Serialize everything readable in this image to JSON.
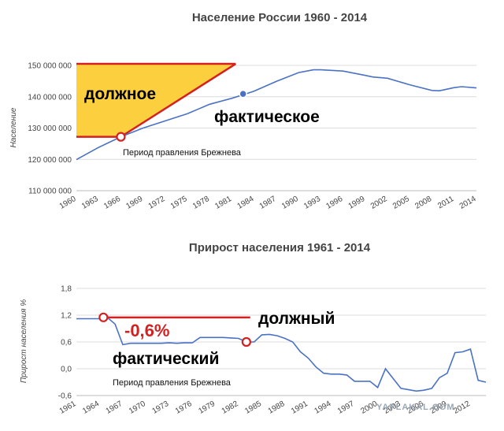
{
  "chart_data": [
    {
      "type": "line",
      "title": "Население России 1960 - 2014",
      "ylabel": "Население",
      "xlim": [
        1960,
        2014
      ],
      "ylim": [
        110000000,
        150000000
      ],
      "yticks": [
        "110 000 000",
        "120 000 000",
        "130 000 000",
        "140 000 000",
        "150 000 000"
      ],
      "yticks_values": [
        110000000,
        120000000,
        130000000,
        140000000,
        150000000
      ],
      "xticks": [
        "1960",
        "1963",
        "1966",
        "1969",
        "1972",
        "1975",
        "1978",
        "1981",
        "1984",
        "1987",
        "1990",
        "1993",
        "1996",
        "1999",
        "2002",
        "2005",
        "2008",
        "2011",
        "2014"
      ],
      "grid": true,
      "series": [
        {
          "name": "",
          "color": "#4a72c4",
          "x": [
            1960,
            1963,
            1966,
            1969,
            1972,
            1975,
            1978,
            1981,
            1983,
            1984,
            1987,
            1990,
            1992,
            1993,
            1996,
            1999,
            2000,
            2002,
            2005,
            2008,
            2009,
            2011,
            2012,
            2014
          ],
          "y": [
            119900000,
            123800000,
            127200000,
            130000000,
            132300000,
            134600000,
            137600000,
            139500000,
            141000000,
            141800000,
            144900000,
            147700000,
            148600000,
            148600000,
            148200000,
            146800000,
            146300000,
            145900000,
            143800000,
            142000000,
            141900000,
            142900000,
            143200000,
            142800000
          ]
        }
      ],
      "markers": [
        {
          "x": 1966,
          "y": 127200000,
          "style": "red-ring"
        },
        {
          "x": 1982.5,
          "y": 140900000,
          "style": "blue-dot"
        }
      ],
      "annotations": {
        "should_label": "должное",
        "actual_label": "фактическое",
        "period_label": "Период правления Брежнева",
        "shaded_region": {
          "x": [
            1960,
            1981.5
          ],
          "y_low": 127200000,
          "y_high": 150500000,
          "color": "#fccf3e",
          "border": "#d42020"
        }
      }
    },
    {
      "type": "line",
      "title": "Прирост населения 1961 - 2014",
      "ylabel": "Прирост населения %",
      "xlim": [
        1961,
        2014
      ],
      "ylim": [
        -0.6,
        1.8
      ],
      "yticks": [
        "-0,6",
        "0,0",
        "0,6",
        "1,2",
        "1,8"
      ],
      "yticks_values": [
        -0.6,
        0.0,
        0.6,
        1.2,
        1.8
      ],
      "xticks": [
        "1961",
        "1964",
        "1967",
        "1970",
        "1973",
        "1976",
        "1979",
        "1982",
        "1985",
        "1988",
        "1991",
        "1994",
        "1997",
        "2000",
        "2003",
        "2006",
        "2009",
        "2012"
      ],
      "grid": true,
      "series": [
        {
          "name": "",
          "color": "#4a72c4",
          "x": [
            1961,
            1962,
            1963,
            1964,
            1965,
            1966,
            1967,
            1968,
            1969,
            1970,
            1971,
            1972,
            1973,
            1974,
            1975,
            1976,
            1977,
            1978,
            1979,
            1980,
            1981,
            1982,
            1983,
            1984,
            1985,
            1986,
            1987,
            1988,
            1989,
            1990,
            1991,
            1992,
            1993,
            1994,
            1995,
            1996,
            1997,
            1998,
            1999,
            2000,
            2001,
            2002,
            2003,
            2004,
            2005,
            2006,
            2007,
            2008,
            2009,
            2010,
            2011,
            2012,
            2013,
            2014
          ],
          "y": [
            1.12,
            1.12,
            1.12,
            1.12,
            1.15,
            1.0,
            0.54,
            0.57,
            0.57,
            0.57,
            0.57,
            0.57,
            0.58,
            0.57,
            0.58,
            0.58,
            0.7,
            0.7,
            0.7,
            0.7,
            0.69,
            0.68,
            0.6,
            0.6,
            0.76,
            0.77,
            0.74,
            0.68,
            0.6,
            0.38,
            0.24,
            0.04,
            -0.1,
            -0.12,
            -0.12,
            -0.14,
            -0.28,
            -0.28,
            -0.28,
            -0.42,
            0.0,
            -0.22,
            -0.44,
            -0.47,
            -0.5,
            -0.48,
            -0.44,
            -0.2,
            -0.1,
            0.36,
            0.38,
            0.44,
            -0.26,
            -0.3
          ]
        }
      ],
      "markers": [
        {
          "x": 1964.5,
          "y": 1.15,
          "style": "red-ring"
        },
        {
          "x": 1983.0,
          "y": 0.6,
          "style": "red-ring"
        }
      ],
      "annotations": {
        "should_label": "должный",
        "actual_label": "фактический",
        "diff_label": "-0,6%",
        "period_label": "Период правления Брежнева",
        "should_line": {
          "x": [
            1964.5,
            1983.5
          ],
          "y": 1.15,
          "color": "#d42020"
        }
      }
    }
  ],
  "watermark": "YAPLAKAL.COM"
}
